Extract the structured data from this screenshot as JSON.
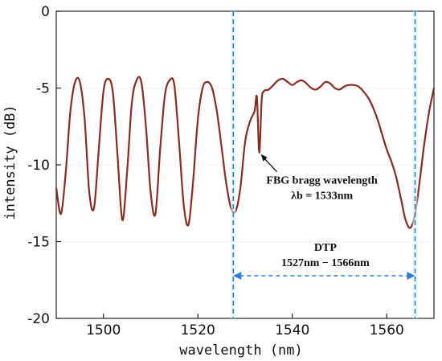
{
  "chart_data": {
    "type": "line",
    "xlabel": "wavelength (nm)",
    "ylabel": "intensity (dB)",
    "xlim": [
      1490,
      1570
    ],
    "ylim": [
      -20,
      0
    ],
    "xticks": [
      1500,
      1520,
      1540,
      1560
    ],
    "yticks": [
      0,
      -5,
      -10,
      -15,
      -20
    ],
    "grid": "horizontal dotted",
    "series": [
      {
        "color": "#8B2A1E",
        "x": [
          1490,
          1491,
          1492,
          1493,
          1494,
          1495,
          1496,
          1497,
          1498,
          1499,
          1500,
          1501,
          1502,
          1503,
          1504,
          1505,
          1506,
          1507,
          1508,
          1509,
          1510,
          1511,
          1512,
          1513,
          1514,
          1515,
          1516,
          1517,
          1518,
          1519,
          1520,
          1521,
          1522,
          1523,
          1524,
          1525,
          1526,
          1527,
          1528,
          1529,
          1530,
          1531,
          1532,
          1532.5,
          1533,
          1533.5,
          1534,
          1535,
          1536,
          1537,
          1538,
          1539,
          1540,
          1541,
          1542,
          1543,
          1544,
          1545,
          1546,
          1547,
          1548,
          1549,
          1550,
          1551,
          1552,
          1553,
          1554,
          1555,
          1556,
          1557,
          1558,
          1559,
          1560,
          1561,
          1562,
          1563,
          1564,
          1565,
          1566,
          1567,
          1568,
          1569,
          1570
        ],
        "y": [
          -11.5,
          -13.2,
          -10.5,
          -6.5,
          -4.6,
          -4.6,
          -7.0,
          -11.8,
          -12.8,
          -9.0,
          -5.2,
          -4.4,
          -5.3,
          -9.5,
          -13.6,
          -10.5,
          -6.0,
          -4.5,
          -4.6,
          -7.5,
          -11.8,
          -13.2,
          -9.0,
          -5.5,
          -4.5,
          -4.8,
          -8.5,
          -12.6,
          -13.9,
          -11.0,
          -7.0,
          -5.0,
          -4.6,
          -5.0,
          -6.5,
          -8.8,
          -11.2,
          -12.8,
          -13.0,
          -11.5,
          -8.5,
          -7.2,
          -6.5,
          -5.6,
          -9.2,
          -5.8,
          -5.2,
          -5.1,
          -4.8,
          -4.5,
          -4.4,
          -4.6,
          -4.8,
          -4.6,
          -4.5,
          -4.7,
          -5.0,
          -5.1,
          -4.9,
          -4.6,
          -4.7,
          -5.0,
          -5.1,
          -4.9,
          -4.8,
          -4.8,
          -4.9,
          -5.2,
          -5.6,
          -6.2,
          -7.0,
          -8.0,
          -9.0,
          -9.8,
          -10.8,
          -12.2,
          -13.6,
          -14.1,
          -13.2,
          -11.0,
          -8.5,
          -6.5,
          -5.0
        ]
      }
    ],
    "vlines": [
      1527.5,
      1566
    ],
    "annotations": [
      {
        "x": 1533,
        "y": -9.2,
        "line1": "FBG bragg wavelength",
        "line2": "λb = 1533nm"
      },
      {
        "x": 1547,
        "y": -16.3,
        "line1": "DTP",
        "line2": "1527nm − 1566nm"
      }
    ]
  }
}
